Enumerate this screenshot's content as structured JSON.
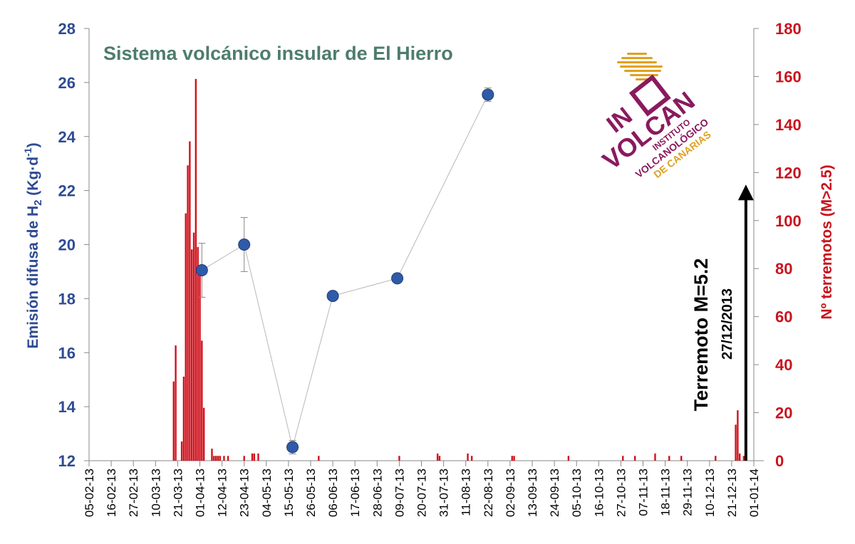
{
  "chart_data": {
    "type": "bar+scatter",
    "title": "Sistema volcánico insular de El Hierro",
    "ylabel_left_main": "Emisión difusa de H",
    "ylabel_left_sub": "2",
    "ylabel_left_mid": " (Kg·d",
    "ylabel_left_sup": "-1",
    "ylabel_left_end": ")",
    "ylabel_right": "Nº terremotos (M>2.5)",
    "y_left_range": [
      12,
      28
    ],
    "y_left_ticks": [
      "12",
      "14",
      "16",
      "18",
      "20",
      "22",
      "24",
      "26",
      "28"
    ],
    "y_right_range": [
      0,
      180
    ],
    "y_right_ticks": [
      "0",
      "20",
      "40",
      "60",
      "80",
      "100",
      "120",
      "140",
      "160",
      "180"
    ],
    "x_range": [
      "2013-02-05",
      "2014-01-01"
    ],
    "x_tick_labels": [
      "05-02-13",
      "16-02-13",
      "27-02-13",
      "10-03-13",
      "21-03-13",
      "01-04-13",
      "12-04-13",
      "23-04-13",
      "04-05-13",
      "15-05-13",
      "26-05-13",
      "06-06-13",
      "17-06-13",
      "28-06-13",
      "09-07-13",
      "20-07-13",
      "31-07-13",
      "11-08-13",
      "22-08-13",
      "02-09-13",
      "13-09-13",
      "24-09-13",
      "05-10-13",
      "16-10-13",
      "27-10-13",
      "07-11-13",
      "18-11-13",
      "29-11-13",
      "10-12-13",
      "21-12-13",
      "01-01-14"
    ],
    "grid": false,
    "series": [
      {
        "kind": "scatter-line",
        "axis": "left",
        "color": "#2f5aa8",
        "points": [
          {
            "x": "2013-04-02",
            "y": 19.05,
            "err": 1.0
          },
          {
            "x": "2013-04-23",
            "y": 20.0,
            "err": 1.0
          },
          {
            "x": "2013-05-17",
            "y": 12.5,
            "err": 0.25
          },
          {
            "x": "2013-06-06",
            "y": 18.1,
            "err": 0.1
          },
          {
            "x": "2013-07-08",
            "y": 18.75,
            "err": 0.15
          },
          {
            "x": "2013-08-22",
            "y": 25.55,
            "err": 0.25
          }
        ]
      },
      {
        "kind": "bar",
        "axis": "right",
        "color": "#d0121c",
        "points": [
          {
            "x": "2013-03-19",
            "y": 33
          },
          {
            "x": "2013-03-20",
            "y": 48
          },
          {
            "x": "2013-03-23",
            "y": 8
          },
          {
            "x": "2013-03-24",
            "y": 35
          },
          {
            "x": "2013-03-25",
            "y": 103
          },
          {
            "x": "2013-03-26",
            "y": 123
          },
          {
            "x": "2013-03-27",
            "y": 133
          },
          {
            "x": "2013-03-28",
            "y": 88
          },
          {
            "x": "2013-03-29",
            "y": 95
          },
          {
            "x": "2013-03-30",
            "y": 159
          },
          {
            "x": "2013-03-31",
            "y": 89
          },
          {
            "x": "2013-04-01",
            "y": 78
          },
          {
            "x": "2013-04-02",
            "y": 50
          },
          {
            "x": "2013-04-03",
            "y": 22
          },
          {
            "x": "2013-04-07",
            "y": 5
          },
          {
            "x": "2013-04-08",
            "y": 2
          },
          {
            "x": "2013-04-09",
            "y": 2
          },
          {
            "x": "2013-04-10",
            "y": 2
          },
          {
            "x": "2013-04-11",
            "y": 2
          },
          {
            "x": "2013-04-13",
            "y": 2
          },
          {
            "x": "2013-04-15",
            "y": 2
          },
          {
            "x": "2013-04-23",
            "y": 2
          },
          {
            "x": "2013-04-27",
            "y": 3
          },
          {
            "x": "2013-04-28",
            "y": 3
          },
          {
            "x": "2013-04-30",
            "y": 3
          },
          {
            "x": "2013-05-30",
            "y": 2
          },
          {
            "x": "2013-07-09",
            "y": 2
          },
          {
            "x": "2013-07-28",
            "y": 3
          },
          {
            "x": "2013-07-29",
            "y": 2
          },
          {
            "x": "2013-08-12",
            "y": 3
          },
          {
            "x": "2013-08-14",
            "y": 2
          },
          {
            "x": "2013-09-03",
            "y": 2
          },
          {
            "x": "2013-09-04",
            "y": 2
          },
          {
            "x": "2013-10-01",
            "y": 2
          },
          {
            "x": "2013-10-28",
            "y": 2
          },
          {
            "x": "2013-11-03",
            "y": 2
          },
          {
            "x": "2013-11-13",
            "y": 3
          },
          {
            "x": "2013-11-20",
            "y": 2
          },
          {
            "x": "2013-11-26",
            "y": 2
          },
          {
            "x": "2013-12-13",
            "y": 2
          },
          {
            "x": "2013-12-23",
            "y": 15
          },
          {
            "x": "2013-12-24",
            "y": 21
          },
          {
            "x": "2013-12-25",
            "y": 3
          },
          {
            "x": "2013-12-27",
            "y": 2
          },
          {
            "x": "2013-12-28",
            "y": 2
          }
        ]
      }
    ],
    "annotation": {
      "x": "2013-12-27",
      "arrow_from_y": 0,
      "arrow_to_y": 115,
      "text_main": "Terremoto M=5.2",
      "text_date": "27/12/2013"
    }
  },
  "logo": {
    "line1": "IN",
    "line2": "VOLCAN",
    "line3": "INSTITUTO",
    "line4": "VOLCANOLÓGICO",
    "line5": "DE CANARIAS",
    "purple": "#8a1a5e",
    "gold": "#e0a020"
  }
}
